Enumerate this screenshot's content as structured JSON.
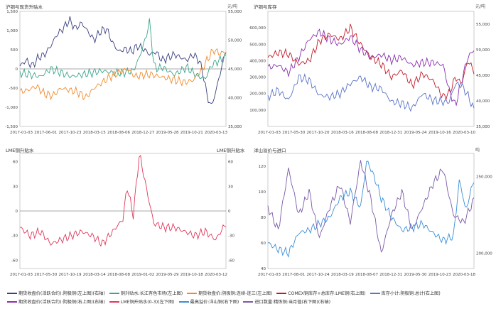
{
  "chart_data": [
    {
      "type": "line",
      "title": "沪铜与现货升贴水",
      "unit_right": "元/吨",
      "ylim_left": [
        -1500,
        1500
      ],
      "yticks_left": [
        "1,500",
        "1,000",
        "500",
        "0",
        "-500",
        "-1,000",
        "-1,500"
      ],
      "ylim_right": [
        35000,
        55000
      ],
      "yticks_right": [
        "55,000",
        "50,000",
        "45,000",
        "40,000",
        "35,000"
      ],
      "x_ticks": [
        "2017-01-03",
        "2017-06-01",
        "2017-10-23",
        "2018-03-15",
        "2018-08-06",
        "2018-12-27",
        "2019-05-28",
        "2019-10-21",
        "2020-03-13"
      ],
      "series": [
        {
          "name": "期货收盘价(活跃合约):阴极铜(右轴)",
          "axis": "right",
          "color": "#3a3f7e",
          "x": [
            0,
            0.03,
            0.06,
            0.09,
            0.12,
            0.15,
            0.18,
            0.21,
            0.24,
            0.27,
            0.3,
            0.33,
            0.36,
            0.39,
            0.42,
            0.45,
            0.48,
            0.51,
            0.54,
            0.57,
            0.6,
            0.63,
            0.66,
            0.69,
            0.72,
            0.75,
            0.78,
            0.81,
            0.84,
            0.87,
            0.89,
            0.91,
            0.93,
            0.95,
            0.97,
            1.0
          ],
          "y": [
            45500,
            46500,
            45500,
            47000,
            47500,
            49000,
            51000,
            52000,
            53500,
            52000,
            53000,
            51500,
            50000,
            51500,
            52000,
            49500,
            48000,
            48500,
            48000,
            49000,
            48500,
            47500,
            48000,
            46500,
            47000,
            47500,
            47000,
            46500,
            47500,
            46500,
            44000,
            40000,
            38500,
            41000,
            44000,
            48500
          ]
        },
        {
          "name": "铜升贴水:长江有色市场(左上图)",
          "axis": "left",
          "color": "#3aa58a",
          "x": [
            0,
            0.05,
            0.1,
            0.15,
            0.2,
            0.25,
            0.3,
            0.35,
            0.4,
            0.45,
            0.5,
            0.55,
            0.58,
            0.61,
            0.63,
            0.65,
            0.67,
            0.69,
            0.72,
            0.75,
            0.78,
            0.81,
            0.84,
            0.87,
            0.9,
            0.93,
            0.96,
            1.0
          ],
          "y": [
            -100,
            -150,
            -200,
            0,
            -100,
            -200,
            -150,
            -100,
            -50,
            -100,
            -100,
            -50,
            300,
            800,
            1250,
            100,
            0,
            50,
            -50,
            -150,
            -50,
            50,
            -100,
            -200,
            -250,
            100,
            200,
            300
          ]
        },
        {
          "name": "期货收盘价:阴极铜:连续-连三(左上图)",
          "axis": "left",
          "color": "#f08a2c",
          "x": [
            0,
            0.04,
            0.08,
            0.12,
            0.16,
            0.2,
            0.24,
            0.28,
            0.32,
            0.36,
            0.4,
            0.44,
            0.48,
            0.52,
            0.56,
            0.6,
            0.64,
            0.68,
            0.72,
            0.76,
            0.8,
            0.84,
            0.88,
            0.91,
            0.94,
            0.97,
            1.0
          ],
          "y": [
            -600,
            -550,
            -450,
            -650,
            -700,
            -500,
            -550,
            -600,
            -750,
            -500,
            -350,
            -200,
            -100,
            0,
            -200,
            -150,
            -150,
            -200,
            -250,
            -300,
            -350,
            -300,
            -50,
            250,
            500,
            400,
            450
          ]
        }
      ]
    },
    {
      "type": "line",
      "title": "沪铜与库存",
      "unit_right": "元/吨",
      "ylim_left": [
        0,
        700000
      ],
      "yticks_left": [
        "600,000",
        "500,000",
        "400,000",
        "300,000",
        "200,000",
        "100,000"
      ],
      "ylim_right": [
        35000,
        57500
      ],
      "yticks_right": [
        "55,000",
        "50,000",
        "45,000",
        "40,000",
        "35,000"
      ],
      "x_ticks": [
        "2017-01-03",
        "2017-05-30",
        "2017-10-20",
        "2018-03-16",
        "2018-08-08",
        "2018-12-31",
        "2019-05-24",
        "2019-10-16",
        "2020-03-10"
      ],
      "series": [
        {
          "name": "COMEX铜库存+总库存:LME铜(右上图)",
          "axis": "left",
          "color": "#c21a2b",
          "x": [
            0,
            0.05,
            0.1,
            0.15,
            0.2,
            0.25,
            0.3,
            0.35,
            0.4,
            0.45,
            0.5,
            0.55,
            0.6,
            0.65,
            0.7,
            0.75,
            0.8,
            0.85,
            0.88,
            0.91,
            0.94,
            0.97,
            1.0
          ],
          "y": [
            420000,
            450000,
            440000,
            380000,
            400000,
            520000,
            560000,
            530000,
            600000,
            500000,
            420000,
            380000,
            300000,
            340000,
            250000,
            320000,
            280000,
            180000,
            200000,
            300000,
            260000,
            400000,
            340000
          ]
        },
        {
          "name": "库存小计:阴极铜:总计(右上图)",
          "axis": "left",
          "color": "#5a73c8",
          "x": [
            0,
            0.05,
            0.1,
            0.15,
            0.2,
            0.25,
            0.3,
            0.35,
            0.4,
            0.45,
            0.5,
            0.55,
            0.6,
            0.65,
            0.7,
            0.75,
            0.8,
            0.85,
            0.88,
            0.91,
            0.94,
            0.97,
            1.0
          ],
          "y": [
            180000,
            220000,
            160000,
            300000,
            280000,
            190000,
            180000,
            200000,
            260000,
            300000,
            240000,
            230000,
            150000,
            140000,
            110000,
            200000,
            160000,
            150000,
            150000,
            260000,
            250000,
            190000,
            100000
          ]
        },
        {
          "name": "期货收盘价(活跃合约):阴极铜(右上图)(右轴)",
          "axis": "right",
          "color": "#8a2fb0",
          "x": [
            0,
            0.05,
            0.1,
            0.15,
            0.2,
            0.25,
            0.3,
            0.35,
            0.4,
            0.45,
            0.5,
            0.55,
            0.6,
            0.65,
            0.7,
            0.75,
            0.8,
            0.85,
            0.88,
            0.91,
            0.94,
            0.97,
            1.0
          ],
          "y": [
            46500,
            47000,
            45500,
            48500,
            52000,
            53500,
            52000,
            51000,
            52500,
            50000,
            48500,
            49000,
            48000,
            48500,
            47000,
            47500,
            47500,
            47000,
            42000,
            39000,
            44000,
            48500,
            50000
          ]
        }
      ]
    },
    {
      "type": "line",
      "title": "LME铜升贴水",
      "title_right": "LME铜升贴水",
      "ylim": [
        -70,
        70
      ],
      "yticks_left": [
        "60",
        "30",
        "0",
        "-30",
        "-60"
      ],
      "yticks_right": [
        "60",
        "30",
        "0",
        "-30",
        "-60"
      ],
      "x_ticks": [
        "2017-01-03",
        "2017-05-30",
        "2017-10-19",
        "2018-03-14",
        "2018-08-08",
        "2019-01-02",
        "2019-05-29",
        "2019-10-18",
        "2020-03-12"
      ],
      "series": [
        {
          "name": "LME铜升贴水(0-3)(左下图)",
          "color": "#e0385c",
          "x": [
            0,
            0.05,
            0.1,
            0.15,
            0.2,
            0.25,
            0.3,
            0.35,
            0.4,
            0.45,
            0.5,
            0.52,
            0.55,
            0.58,
            0.62,
            0.65,
            0.7,
            0.75,
            0.8,
            0.85,
            0.9,
            0.95,
            1.0
          ],
          "y": [
            -20,
            -30,
            -25,
            -40,
            -35,
            -30,
            -25,
            -30,
            -40,
            -25,
            -10,
            30,
            -5,
            70,
            20,
            -15,
            -20,
            -20,
            -25,
            -30,
            -25,
            -35,
            -15
          ]
        }
      ]
    },
    {
      "type": "line",
      "title": "洋山溢价与进口",
      "unit_right": "吨",
      "ylim_left": [
        40,
        130
      ],
      "yticks_left": [
        "120",
        "100",
        "80",
        "60",
        "40"
      ],
      "ylim_right": [
        190000,
        265000
      ],
      "yticks_right": [
        "250,000",
        "200,000"
      ],
      "x_ticks": [
        "2017-01-03",
        "2017-08-01",
        "2017-10-24",
        "2018-03-19",
        "2018-08-07",
        "2018-12-31",
        "2019-05-30",
        "2019-10-23",
        "2020-03-18"
      ],
      "series": [
        {
          "name": "最高溢价:洋山铜(右下图)",
          "axis": "left",
          "color": "#3a8fd8",
          "x": [
            0,
            0.05,
            0.1,
            0.15,
            0.2,
            0.25,
            0.3,
            0.35,
            0.4,
            0.45,
            0.48,
            0.52,
            0.55,
            0.6,
            0.65,
            0.7,
            0.75,
            0.8,
            0.85,
            0.9,
            0.93,
            0.96,
            1.0
          ],
          "y": [
            60,
            55,
            52,
            68,
            70,
            75,
            80,
            95,
            100,
            88,
            125,
            110,
            95,
            80,
            70,
            72,
            75,
            68,
            62,
            65,
            110,
            85,
            110
          ]
        },
        {
          "name": "进口数量:精炼铜:当月值(右下图)(右轴)",
          "axis": "right",
          "color": "#7a5aa8",
          "x": [
            0,
            0.05,
            0.1,
            0.15,
            0.2,
            0.25,
            0.3,
            0.35,
            0.4,
            0.45,
            0.5,
            0.55,
            0.6,
            0.65,
            0.7,
            0.75,
            0.8,
            0.85,
            0.9,
            0.95,
            1.0
          ],
          "y": [
            230000,
            215000,
            255000,
            225000,
            240000,
            210000,
            230000,
            245000,
            220000,
            260000,
            235000,
            200000,
            225000,
            240000,
            215000,
            230000,
            245000,
            255000,
            225000,
            220000,
            235000
          ]
        }
      ]
    }
  ],
  "legend": [
    {
      "label": "期货收盘价(活跃合约):阴极铜(左上图)(右轴)",
      "color": "#3a3f7e"
    },
    {
      "label": "铜升贴水:长江有色市场(左上图)",
      "color": "#3aa58a"
    },
    {
      "label": "期货收盘价:阴极铜:连续-连三(左上图)",
      "color": "#f08a2c"
    },
    {
      "label": "COMEX铜库存+总库存:LME铜(右上图)",
      "color": "#c21a2b"
    },
    {
      "label": "库存小计:阴极铜:总计(右上图)",
      "color": "#5a73c8"
    },
    {
      "label": "期货收盘价(活跃合约):阴极铜(右上图)(右轴)",
      "color": "#8a2fb0"
    },
    {
      "label": "LME铜升贴水(0-3)(左下图)",
      "color": "#e0385c"
    },
    {
      "label": "最高溢价:洋山铜(右下图)",
      "color": "#3a8fd8"
    },
    {
      "label": "进口数量:精炼铜:当月值(右下图)(右轴)",
      "color": "#7a5aa8"
    }
  ]
}
